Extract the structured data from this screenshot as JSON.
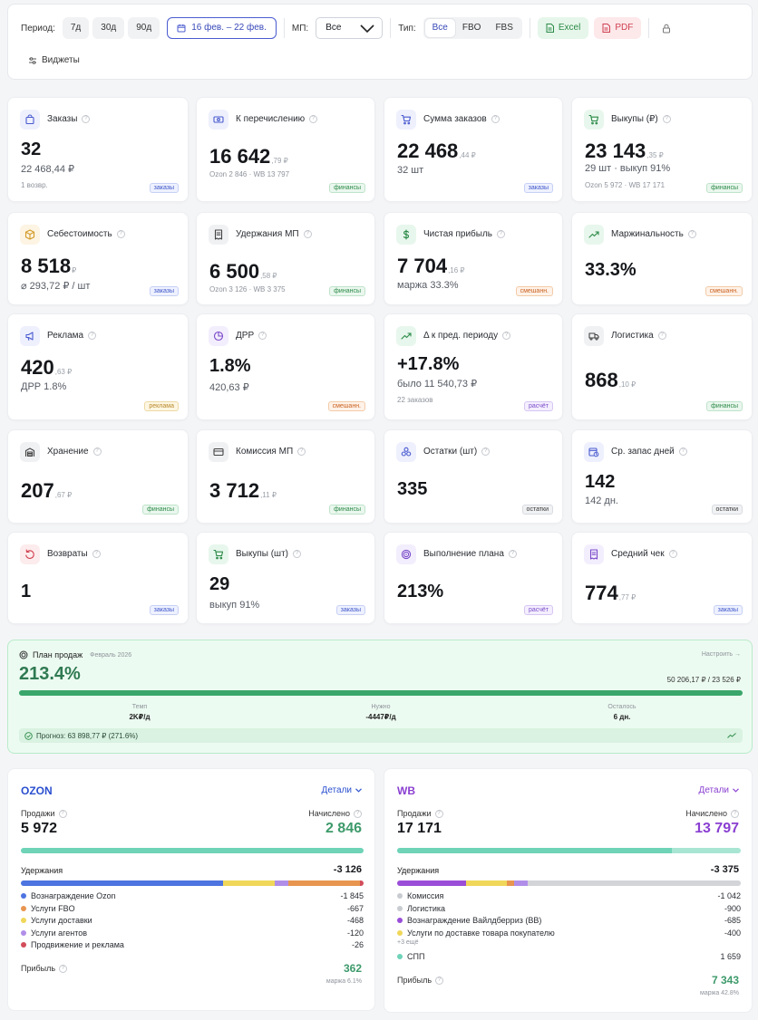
{
  "header": {
    "period_label": "Период:",
    "periods": [
      "7д",
      "30д",
      "90д"
    ],
    "date_range": "16 фев. – 22 фев.",
    "mp_label": "МП:",
    "mp_value": "Все",
    "type_label": "Тип:",
    "types": [
      "Все",
      "FBO",
      "FBS"
    ],
    "excel": "Excel",
    "pdf": "PDF",
    "widgets": "Виджеты"
  },
  "cards": [
    {
      "title": "Заказы",
      "icon": "bag-icon",
      "value": "32",
      "dec": "",
      "sub": "22 468,44 ₽",
      "extra": "1 возвр.",
      "tag": "заказы",
      "tag_kind": "z",
      "icon_bg": "#eef0fd",
      "icon_fg": "#4a5bd0"
    },
    {
      "title": "К перечислению",
      "icon": "money-icon",
      "value": "16 642",
      "dec": ",79 ₽",
      "sub": "",
      "extra": "Ozon 2 846 · WB 13 797",
      "tag": "финансы",
      "tag_kind": "f",
      "icon_bg": "#eef0fd",
      "icon_fg": "#4a5bd0"
    },
    {
      "title": "Сумма заказов",
      "icon": "cart-icon",
      "value": "22 468",
      "dec": ",44 ₽",
      "sub": "32 шт",
      "extra": "",
      "tag": "заказы",
      "tag_kind": "z",
      "icon_bg": "#eef0fd",
      "icon_fg": "#4a5bd0"
    },
    {
      "title": "Выкупы (₽)",
      "icon": "cart-icon",
      "value": "23 143",
      "dec": ",35 ₽",
      "sub": "29 шт · выкуп 91%",
      "extra": "Ozon 5 972 · WB 17 171",
      "tag": "финансы",
      "tag_kind": "f",
      "icon_bg": "#e8f7ed",
      "icon_fg": "#2b8a47"
    },
    {
      "title": "Себестоимость",
      "icon": "box-icon",
      "value": "8 518",
      "dec": "₽",
      "sub": "⌀ 293,72 ₽ / шт",
      "extra": "",
      "tag": "заказы",
      "tag_kind": "z",
      "icon_bg": "#fdf4e3",
      "icon_fg": "#d39a27"
    },
    {
      "title": "Удержания МП",
      "icon": "receipt-icon",
      "value": "6 500",
      "dec": ",58 ₽",
      "sub": "",
      "extra": "Ozon 3 126 · WB 3 375",
      "tag": "финансы",
      "tag_kind": "f",
      "icon_bg": "#f0f1f3",
      "icon_fg": "#444"
    },
    {
      "title": "Чистая прибыль",
      "icon": "dollar-icon",
      "value": "7 704",
      "dec": ",16 ₽",
      "sub": "маржа 33.3%",
      "extra": "",
      "tag": "смешанн.",
      "tag_kind": "m",
      "icon_bg": "#e8f7ed",
      "icon_fg": "#2b8a47"
    },
    {
      "title": "Маржинальность",
      "icon": "trend-up-icon",
      "value": "33.3%",
      "dec": "",
      "sub": "",
      "extra": "",
      "tag": "смешанн.",
      "tag_kind": "m",
      "icon_bg": "#e8f7ed",
      "icon_fg": "#2b8a47"
    },
    {
      "title": "Реклама",
      "icon": "megaphone-icon",
      "value": "420",
      "dec": ",63 ₽",
      "sub": "ДРР 1.8%",
      "extra": "",
      "tag": "реклама",
      "tag_kind": "r",
      "icon_bg": "#eef0fd",
      "icon_fg": "#4a5bd0"
    },
    {
      "title": "ДРР",
      "icon": "pie-icon",
      "value": "1.8%",
      "dec": "",
      "sub": "420,63 ₽",
      "extra": "",
      "tag": "смешанн.",
      "tag_kind": "m",
      "icon_bg": "#f3eefd",
      "icon_fg": "#7a4bc9"
    },
    {
      "title": "Δ к пред. периоду",
      "icon": "trend-up-icon",
      "value": "+17.8%",
      "dec": "",
      "sub": "было 11 540,73 ₽",
      "extra": "22 заказов",
      "tag": "расчёт",
      "tag_kind": "c",
      "icon_bg": "#e8f7ed",
      "icon_fg": "#2b8a47"
    },
    {
      "title": "Логистика",
      "icon": "truck-icon",
      "value": "868",
      "dec": ",10 ₽",
      "sub": "",
      "extra": "",
      "tag": "финансы",
      "tag_kind": "f",
      "icon_bg": "#f0f1f3",
      "icon_fg": "#444"
    },
    {
      "title": "Хранение",
      "icon": "warehouse-icon",
      "value": "207",
      "dec": ",67 ₽",
      "sub": "",
      "extra": "",
      "tag": "финансы",
      "tag_kind": "f",
      "icon_bg": "#f0f1f3",
      "icon_fg": "#444"
    },
    {
      "title": "Комиссия МП",
      "icon": "card-icon",
      "value": "3 712",
      "dec": ",11 ₽",
      "sub": "",
      "extra": "",
      "tag": "финансы",
      "tag_kind": "f",
      "icon_bg": "#f0f1f3",
      "icon_fg": "#444"
    },
    {
      "title": "Остатки (шт)",
      "icon": "boxes-icon",
      "value": "335",
      "dec": "",
      "sub": "",
      "extra": "",
      "tag": "остатки",
      "tag_kind": "o",
      "icon_bg": "#eef0fd",
      "icon_fg": "#4a5bd0"
    },
    {
      "title": "Ср. запас дней",
      "icon": "calendar-clock-icon",
      "value": "142",
      "dec": "",
      "sub": "142 дн.",
      "extra": "",
      "tag": "остатки",
      "tag_kind": "o",
      "icon_bg": "#eef0fd",
      "icon_fg": "#4a5bd0"
    },
    {
      "title": "Возвраты",
      "icon": "return-icon",
      "value": "1",
      "dec": "",
      "sub": "",
      "extra": "",
      "tag": "заказы",
      "tag_kind": "z",
      "icon_bg": "#fdeced",
      "icon_fg": "#d04050"
    },
    {
      "title": "Выкупы (шт)",
      "icon": "cart-icon",
      "value": "29",
      "dec": "",
      "sub": "выкуп 91%",
      "extra": "",
      "tag": "заказы",
      "tag_kind": "z",
      "icon_bg": "#e8f7ed",
      "icon_fg": "#2b8a47"
    },
    {
      "title": "Выполнение плана",
      "icon": "target-icon",
      "value": "213%",
      "dec": "",
      "sub": "",
      "extra": "",
      "tag": "расчёт",
      "tag_kind": "c",
      "icon_bg": "#f3eefd",
      "icon_fg": "#7a4bc9"
    },
    {
      "title": "Средний чек",
      "icon": "receipt-icon",
      "value": "774",
      "dec": ",77 ₽",
      "sub": "",
      "extra": "",
      "tag": "заказы",
      "tag_kind": "z",
      "icon_bg": "#f3eefd",
      "icon_fg": "#7a4bc9"
    }
  ],
  "plan": {
    "title": "План продаж",
    "month": "Февраль 2026",
    "configure": "Настроить →",
    "percent": "213.4%",
    "progress_fraction": 1.0,
    "amounts": "50 206,17 ₽ / 23 526 ₽",
    "stats": [
      {
        "label": "Темп",
        "value": "2K₽/д"
      },
      {
        "label": "Нужно",
        "value": "-4447₽/д"
      },
      {
        "label": "Осталось",
        "value": "6 дн."
      }
    ],
    "forecast": "Прогноз: 63 898,77 ₽ (271.6%)"
  },
  "marketplaces": [
    {
      "name": "OZON",
      "name_color": "#2a4fcf",
      "details": "Детали",
      "sales_label": "Продажи",
      "sales": "5 972",
      "accrued_label": "Начислено",
      "accrued": "2 846",
      "accrued_color": "#3d9a6b",
      "bar_fraction": 1.0,
      "ded_label": "Удержания",
      "ded_total": "-3 126",
      "segments": [
        {
          "color": "#4d74e0",
          "fraction": 0.59
        },
        {
          "color": "#f0d75a",
          "fraction": 0.15
        },
        {
          "color": "#b08ee8",
          "fraction": 0.04
        },
        {
          "color": "#e8954f",
          "fraction": 0.21
        },
        {
          "color": "#d24d5a",
          "fraction": 0.01
        }
      ],
      "items": [
        {
          "color": "#4d74e0",
          "label": "Вознаграждение Ozon",
          "value": "-1 845"
        },
        {
          "color": "#e8954f",
          "label": "Услуги FBO",
          "value": "-667"
        },
        {
          "color": "#f0d75a",
          "label": "Услуги доставки",
          "value": "-468"
        },
        {
          "color": "#b08ee8",
          "label": "Услуги агентов",
          "value": "-120"
        },
        {
          "color": "#d24d5a",
          "label": "Продвижение и реклама",
          "value": "-26"
        }
      ],
      "more": "",
      "spp": null,
      "profit_label": "Прибыль",
      "profit": "362",
      "profit_color": "#3d9a6b",
      "margin": "маржа 6.1%"
    },
    {
      "name": "WB",
      "name_color": "#8a3fd1",
      "details": "Детали",
      "sales_label": "Продажи",
      "sales": "17 171",
      "accrued_label": "Начислено",
      "accrued": "13 797",
      "accrued_color": "#8a3fd1",
      "bar_fraction": 0.8,
      "ded_label": "Удержания",
      "ded_total": "-3 375",
      "segments": [
        {
          "color": "#9a4ed8",
          "fraction": 0.2
        },
        {
          "color": "#f0d75a",
          "fraction": 0.12
        },
        {
          "color": "#e8954f",
          "fraction": 0.02
        },
        {
          "color": "#b08ee8",
          "fraction": 0.04
        },
        {
          "color": "#d2d4d8",
          "fraction": 0.62
        }
      ],
      "items": [
        {
          "color": "#c8cbd0",
          "label": "Комиссия",
          "value": "-1 042"
        },
        {
          "color": "#c8cbd0",
          "label": "Логистика",
          "value": "-900"
        },
        {
          "color": "#9a4ed8",
          "label": "Вознаграждение Вайлдберриз (ВВ)",
          "value": "-685"
        },
        {
          "color": "#f0d75a",
          "label": "Услуги по доставке товара покупателю",
          "value": "-400"
        }
      ],
      "more": "+3 ещё",
      "spp": {
        "color": "#6fd3b8",
        "label": "СПП",
        "value": "1 659"
      },
      "profit_label": "Прибыль",
      "profit": "7 343",
      "profit_color": "#3d9a6b",
      "margin": "маржа 42.8%"
    }
  ]
}
